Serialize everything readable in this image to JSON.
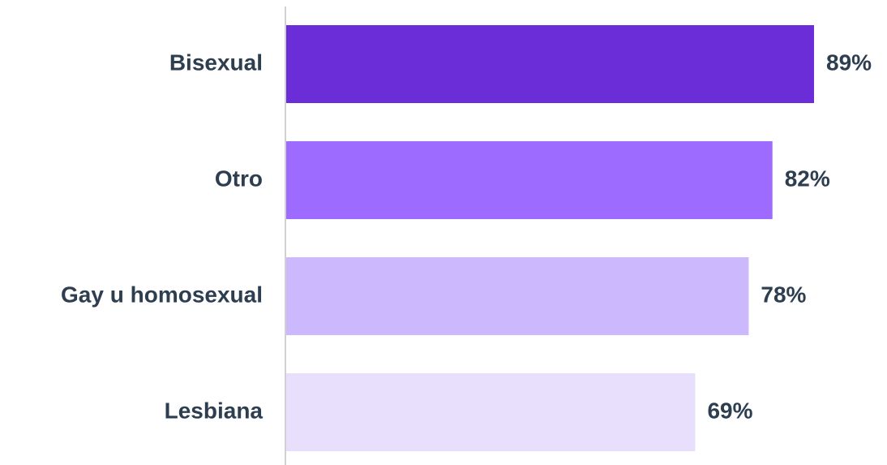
{
  "chart_data": {
    "type": "bar",
    "orientation": "horizontal",
    "categories": [
      "Bisexual",
      "Otro",
      "Gay u homosexual",
      "Lesbiana"
    ],
    "values": [
      89,
      82,
      78,
      69
    ],
    "value_labels": [
      "89%",
      "82%",
      "78%",
      "69%"
    ],
    "colors": [
      "#6a2dd8",
      "#9d6bff",
      "#ccb8fc",
      "#e8dffc"
    ]
  }
}
